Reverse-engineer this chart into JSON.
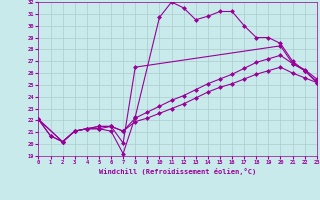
{
  "xlabel": "Windchill (Refroidissement éolien,°C)",
  "bg_color": "#c8eaea",
  "line_color": "#990099",
  "grid_color": "#aacccc",
  "xmin": 0,
  "xmax": 23,
  "ymin": 19,
  "ymax": 32,
  "lines": [
    {
      "x": [
        0,
        1,
        2,
        3,
        4,
        5,
        6,
        7,
        8,
        10,
        11,
        12,
        13,
        14,
        15,
        16,
        17,
        18,
        19,
        20,
        21,
        22,
        23
      ],
      "y": [
        22.1,
        20.7,
        20.2,
        21.1,
        21.3,
        21.3,
        21.1,
        19.2,
        22.3,
        30.7,
        32.0,
        31.5,
        30.5,
        30.8,
        31.2,
        31.2,
        30.0,
        29.0,
        29.0,
        28.5,
        27.0,
        26.2,
        25.2
      ]
    },
    {
      "x": [
        0,
        1,
        2,
        3,
        4,
        5,
        6,
        7,
        8,
        20,
        21,
        22,
        23
      ],
      "y": [
        22.1,
        20.7,
        20.2,
        21.1,
        21.3,
        21.3,
        21.5,
        20.1,
        26.5,
        28.3,
        26.8,
        26.2,
        25.3
      ]
    },
    {
      "x": [
        0,
        2,
        3,
        4,
        5,
        6,
        7,
        8,
        9,
        10,
        11,
        12,
        13,
        14,
        15,
        16,
        17,
        18,
        19,
        20,
        21,
        22,
        23
      ],
      "y": [
        22.1,
        20.2,
        21.1,
        21.3,
        21.5,
        21.5,
        21.1,
        22.2,
        22.7,
        23.2,
        23.7,
        24.1,
        24.6,
        25.1,
        25.5,
        25.9,
        26.4,
        26.9,
        27.2,
        27.5,
        26.8,
        26.3,
        25.5
      ]
    },
    {
      "x": [
        0,
        2,
        3,
        4,
        5,
        6,
        7,
        8,
        9,
        10,
        11,
        12,
        13,
        14,
        15,
        16,
        17,
        18,
        19,
        20,
        21,
        22,
        23
      ],
      "y": [
        22.1,
        20.2,
        21.1,
        21.3,
        21.5,
        21.5,
        21.1,
        21.9,
        22.2,
        22.6,
        23.0,
        23.4,
        23.9,
        24.4,
        24.8,
        25.1,
        25.5,
        25.9,
        26.2,
        26.5,
        26.0,
        25.6,
        25.2
      ]
    }
  ]
}
